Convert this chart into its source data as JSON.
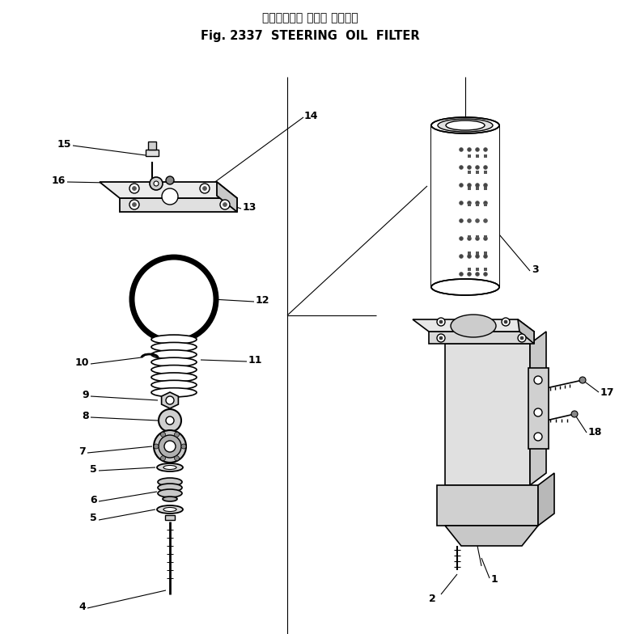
{
  "title_japanese": "ステアリング オイル フィルタ",
  "title_english": "Fig. 2337  STEERING  OIL  FILTER",
  "bg_color": "#ffffff",
  "line_color": "#000000",
  "figsize": [
    7.65,
    7.84
  ],
  "dpi": 100
}
